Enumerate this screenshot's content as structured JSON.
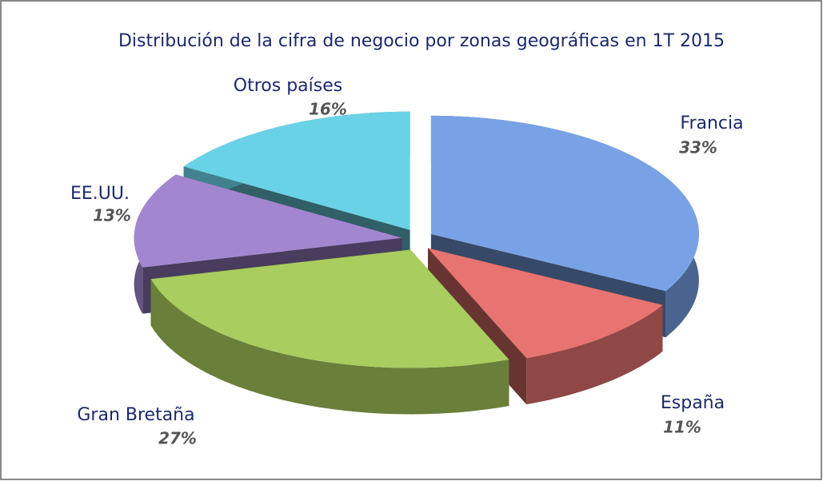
{
  "chart_data": {
    "type": "pie",
    "title": "Distribución de la cifra de negocio por zonas geográficas en 1T 2015",
    "categories": [
      "Francia",
      "España",
      "Gran Bretaña",
      "EE.UU.",
      "Otros países"
    ],
    "values": [
      33,
      11,
      27,
      13,
      16
    ],
    "value_labels": [
      "33%",
      "11%",
      "27%",
      "13%",
      "16%"
    ],
    "colors": [
      "#79a2e6",
      "#e77470",
      "#a9cd5e",
      "#a386d0",
      "#6ad2e6"
    ]
  }
}
